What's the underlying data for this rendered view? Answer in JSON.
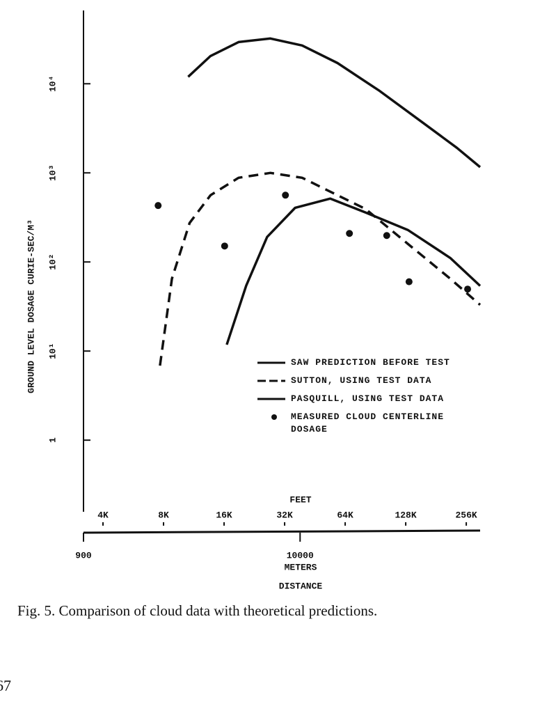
{
  "chart_data": {
    "type": "line",
    "ylabel": "GROUND LEVEL DOSAGE CURIE-SEC/M³",
    "xlabel": "DISTANCE",
    "x_unit_label": "FEET",
    "x2_unit_label": "METERS",
    "xscale": "log",
    "yscale": "log",
    "xlim": [
      3200,
      300000
    ],
    "xticks": [
      {
        "value": 4000,
        "label": "4K"
      },
      {
        "value": 8000,
        "label": "8K"
      },
      {
        "value": 16000,
        "label": "16K"
      },
      {
        "value": 32000,
        "label": "32K"
      },
      {
        "value": 64000,
        "label": "64K"
      },
      {
        "value": 128000,
        "label": "128K"
      },
      {
        "value": 256000,
        "label": "256K"
      }
    ],
    "x2lim": [
      900,
      74000
    ],
    "x2ticks": [
      900,
      10000
    ],
    "ylim": [
      0.16,
      63000
    ],
    "yticks": [
      1,
      {
        "value": 10,
        "label": "10¹"
      },
      {
        "value": 100,
        "label": "10²"
      },
      {
        "value": 1000,
        "label": "10³"
      },
      {
        "value": 10000,
        "label": "10⁴"
      }
    ],
    "series": [
      {
        "name": "SAW PREDICTION BEFORE TEST",
        "color": "#111",
        "style": "solid",
        "x": [
          10600,
          13700,
          18900,
          27200,
          39100,
          58600,
          95000,
          154000,
          230000,
          300000
        ],
        "values": [
          11970,
          20500,
          29400,
          32200,
          26900,
          17100,
          8300,
          3720,
          1910,
          1160
        ]
      },
      {
        "name": "SUTTON, USING TEST DATA",
        "color": "#111",
        "style": "dashed",
        "x": [
          7680,
          8810,
          10780,
          13700,
          18900,
          27200,
          39100,
          54000,
          80900,
          131000,
          213000,
          300000
        ],
        "values": [
          6.86,
          64.9,
          274,
          562,
          881,
          1000,
          881,
          615,
          393,
          160,
          65,
          33
        ]
      },
      {
        "name": "PASQUILL, USING TEST DATA",
        "color": "#111",
        "style": "solid",
        "x": [
          16500,
          20600,
          26200,
          36100,
          54000,
          80900,
          131000,
          213000,
          300000
        ],
        "values": [
          11.8,
          54.2,
          191,
          406,
          514,
          359,
          229,
          111,
          54
        ]
      },
      {
        "name": "MEASURED CLOUD CENTERLINE DOSAGE",
        "color": "#111",
        "style": "dot",
        "x": [
          7520,
          16100,
          32300,
          67200,
          103000,
          133000,
          260000
        ],
        "values": [
          430,
          151,
          562,
          209,
          198,
          60,
          49.6
        ]
      }
    ]
  },
  "caption": "Fig. 5. Comparison of cloud data with theoretical predictions.",
  "page_number": "67"
}
